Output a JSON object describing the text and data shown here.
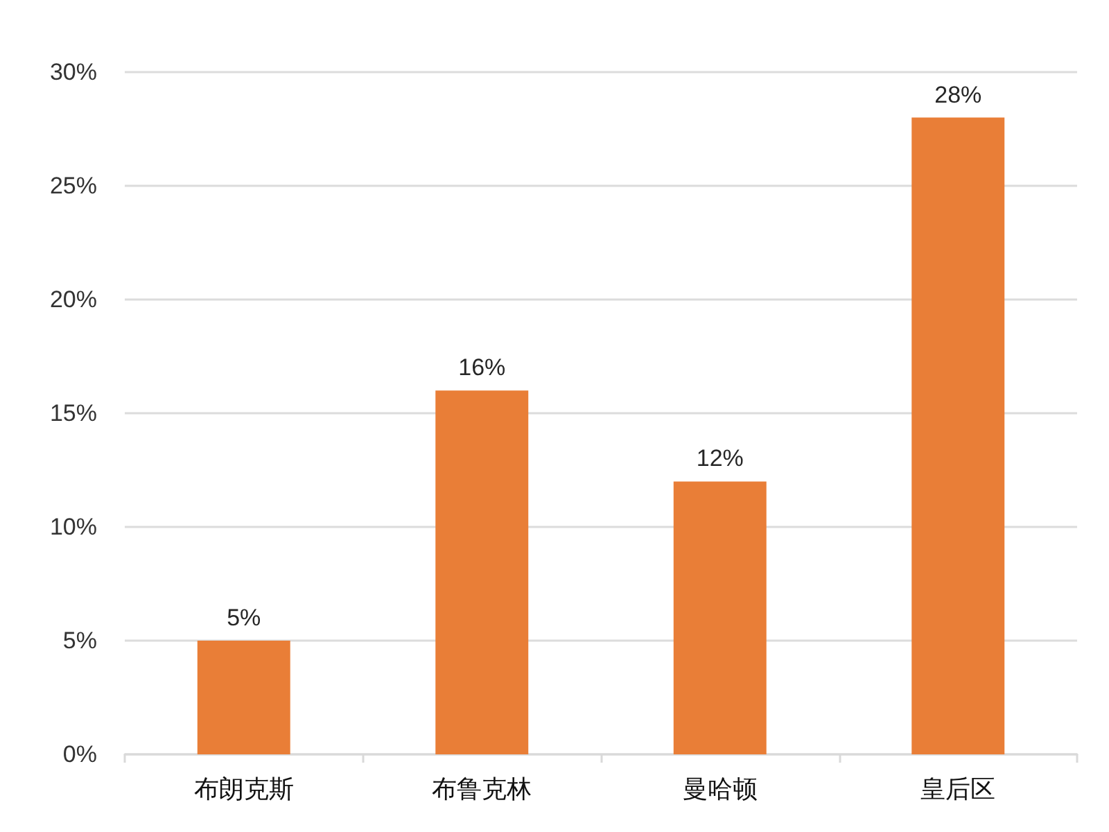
{
  "chart_data": {
    "type": "bar",
    "categories": [
      "布朗克斯",
      "布鲁克林",
      "曼哈顿",
      "皇后区"
    ],
    "values": [
      5,
      16,
      12,
      28
    ],
    "value_labels": [
      "5%",
      "16%",
      "12%",
      "28%"
    ],
    "color": "#e97e37",
    "ylim": [
      0,
      30
    ],
    "yticks": [
      {
        "value": 0,
        "label": "0%"
      },
      {
        "value": 5,
        "label": "5%"
      },
      {
        "value": 10,
        "label": "10%"
      },
      {
        "value": 15,
        "label": "15%"
      },
      {
        "value": 20,
        "label": "20%"
      },
      {
        "value": 25,
        "label": "25%"
      },
      {
        "value": 30,
        "label": "30%"
      }
    ],
    "grid": "y"
  }
}
